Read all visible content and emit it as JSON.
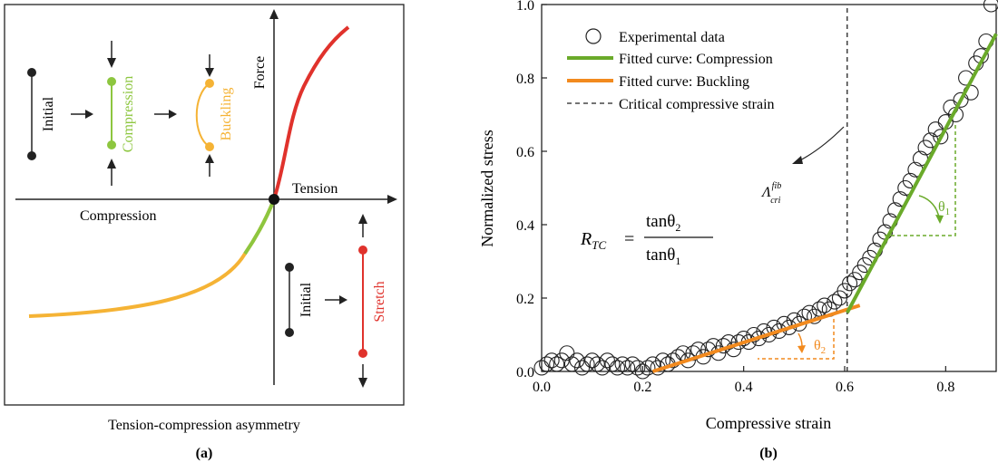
{
  "panel_a": {
    "labels": {
      "force": "Force",
      "tension": "Tension",
      "compression": "Compression",
      "initial": "Initial",
      "compression_state": "Compression",
      "buckling_state": "Buckling",
      "initial_2": "Initial",
      "stretch_state": "Stretch"
    },
    "caption": "Tension-compression asymmetry",
    "tag": "(a)",
    "colors": {
      "compression": "#8dc63f",
      "buckling": "#f5b335",
      "stretch": "#e0322c",
      "initial": "#222222"
    }
  },
  "panel_b": {
    "tag": "(b)",
    "annotation_symbol": "Λ",
    "annotation_sup": "fib",
    "annotation_sub": "cri",
    "theta1_label": "θ",
    "theta1_sub": "1",
    "theta2_label": "θ",
    "theta2_sub": "2",
    "formula": {
      "lhs_R": "R",
      "lhs_sub": "TC",
      "equals": "=",
      "numerator": "tanθ",
      "numerator_sub": "2",
      "denominator": "tanθ",
      "denominator_sub": "1"
    },
    "colors": {
      "compression": "#6aaa2a",
      "buckling": "#f28a1e",
      "theta1": "#6aaa2a",
      "theta2": "#f28a1e"
    }
  },
  "chart_data": {
    "type": "scatter",
    "xlabel": "Compressive strain",
    "ylabel": "Normalized stress",
    "xlim": [
      0,
      0.9
    ],
    "ylim": [
      0,
      1.0
    ],
    "xticks": [
      "0.0",
      "0.2",
      "0.4",
      "0.6",
      "0.8"
    ],
    "yticks": [
      "0.0",
      "0.2",
      "0.4",
      "0.6",
      "0.8",
      "1.0"
    ],
    "legend_position": "top-left",
    "legend": [
      "Experimental data",
      "Fitted curve: Compression",
      "Fitted curve: Buckling",
      "Critical compressive strain"
    ],
    "series": [
      {
        "name": "Experimental data",
        "kind": "scatter",
        "x": [
          0.0,
          0.01,
          0.02,
          0.03,
          0.04,
          0.05,
          0.06,
          0.07,
          0.08,
          0.09,
          0.1,
          0.11,
          0.12,
          0.13,
          0.14,
          0.15,
          0.16,
          0.17,
          0.18,
          0.19,
          0.2,
          0.21,
          0.22,
          0.23,
          0.24,
          0.25,
          0.26,
          0.27,
          0.28,
          0.29,
          0.3,
          0.31,
          0.32,
          0.33,
          0.34,
          0.35,
          0.36,
          0.37,
          0.38,
          0.39,
          0.4,
          0.41,
          0.42,
          0.43,
          0.44,
          0.45,
          0.46,
          0.47,
          0.48,
          0.49,
          0.5,
          0.51,
          0.52,
          0.53,
          0.54,
          0.55,
          0.56,
          0.57,
          0.58,
          0.59,
          0.6,
          0.61,
          0.62,
          0.63,
          0.64,
          0.65,
          0.66,
          0.67,
          0.68,
          0.69,
          0.7,
          0.71,
          0.72,
          0.73,
          0.74,
          0.75,
          0.76,
          0.77,
          0.78,
          0.79,
          0.8,
          0.81,
          0.82,
          0.83,
          0.84,
          0.85,
          0.86,
          0.87,
          0.88,
          0.89
        ],
        "y": [
          0.01,
          0.02,
          0.03,
          0.02,
          0.03,
          0.05,
          0.02,
          0.03,
          0.01,
          0.02,
          0.03,
          0.02,
          0.01,
          0.03,
          0.02,
          0.01,
          0.02,
          0.01,
          0.02,
          0.01,
          0.0,
          0.01,
          0.02,
          0.01,
          0.03,
          0.02,
          0.03,
          0.04,
          0.05,
          0.03,
          0.05,
          0.06,
          0.04,
          0.06,
          0.07,
          0.05,
          0.07,
          0.08,
          0.06,
          0.08,
          0.09,
          0.08,
          0.1,
          0.09,
          0.11,
          0.1,
          0.12,
          0.11,
          0.13,
          0.12,
          0.14,
          0.13,
          0.15,
          0.16,
          0.15,
          0.17,
          0.18,
          0.17,
          0.19,
          0.2,
          0.22,
          0.24,
          0.25,
          0.27,
          0.29,
          0.31,
          0.33,
          0.36,
          0.38,
          0.41,
          0.44,
          0.47,
          0.5,
          0.52,
          0.55,
          0.58,
          0.61,
          0.63,
          0.66,
          0.64,
          0.68,
          0.72,
          0.7,
          0.74,
          0.8,
          0.76,
          0.84,
          0.86,
          0.9,
          1.0
        ]
      },
      {
        "name": "Fitted curve: Compression",
        "kind": "line",
        "x": [
          0.605,
          0.9
        ],
        "y": [
          0.16,
          0.92
        ]
      },
      {
        "name": "Fitted curve: Buckling",
        "kind": "line",
        "x": [
          0.22,
          0.63
        ],
        "y": [
          0.0,
          0.18
        ]
      },
      {
        "name": "Critical compressive strain",
        "kind": "vline",
        "x": [
          0.605,
          0.605
        ],
        "y": [
          0.0,
          1.0
        ]
      }
    ]
  }
}
